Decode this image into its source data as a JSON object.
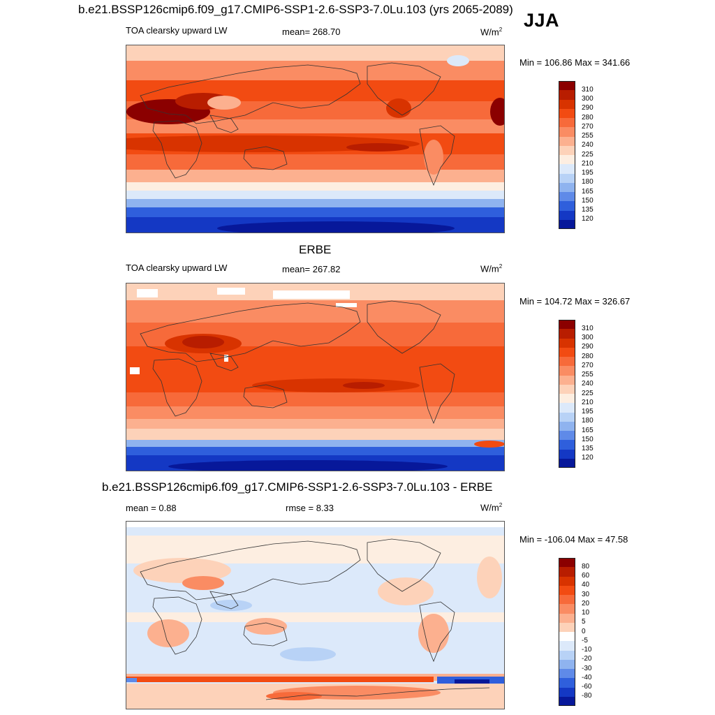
{
  "header": {
    "title": "b.e21.BSSP126cmip6.f09_g17.CMIP6-SSP1-2.6-SSP3-7.0Lu.103 (yrs 2065-2089)",
    "season": "JJA"
  },
  "panels": [
    {
      "id": "model",
      "variable": "TOA clearsky upward LW",
      "mean_label": "mean= 268.70",
      "units": "W/m",
      "units_exp": "2",
      "minmax": "Min = 106.86 Max = 341.66",
      "colorbar_ticks": [
        "310",
        "300",
        "290",
        "280",
        "270",
        "255",
        "240",
        "225",
        "210",
        "195",
        "180",
        "165",
        "150",
        "135",
        "120"
      ]
    },
    {
      "id": "obs",
      "title": "ERBE",
      "variable": "TOA clearsky upward LW",
      "mean_label": "mean= 267.82",
      "units": "W/m",
      "units_exp": "2",
      "minmax": "Min = 104.72 Max = 326.67",
      "colorbar_ticks": [
        "310",
        "300",
        "290",
        "280",
        "270",
        "255",
        "240",
        "225",
        "210",
        "195",
        "180",
        "165",
        "150",
        "135",
        "120"
      ]
    },
    {
      "id": "diff",
      "title": "b.e21.BSSP126cmip6.f09_g17.CMIP6-SSP1-2.6-SSP3-7.0Lu.103 - ERBE",
      "mean_label": "mean =   0.88",
      "rmse_label": "rmse =   8.33",
      "units": "W/m",
      "units_exp": "2",
      "minmax": "Min = -106.04 Max =  47.58",
      "colorbar_ticks": [
        "80",
        "60",
        "40",
        "30",
        "20",
        "10",
        "5",
        "0",
        "-5",
        "-10",
        "-20",
        "-30",
        "-40",
        "-60",
        "-80"
      ]
    }
  ],
  "colorscales": {
    "absolute": [
      "#8b0000",
      "#b81d00",
      "#d83300",
      "#f24b12",
      "#f76a3a",
      "#fa8c63",
      "#fcb08f",
      "#fdd2b9",
      "#fdeee1",
      "#dce9fa",
      "#b8d2f6",
      "#8fb3ef",
      "#5f8ae8",
      "#2f5fdc",
      "#1438c4",
      "#07189a"
    ],
    "difference": [
      "#8b0000",
      "#b81d00",
      "#d83300",
      "#f24b12",
      "#f76a3a",
      "#fa8c63",
      "#fcb08f",
      "#fdd2b9",
      "#ffffff",
      "#dce9fa",
      "#b8d2f6",
      "#8fb3ef",
      "#5f8ae8",
      "#2f5fdc",
      "#1438c4",
      "#07189a"
    ]
  }
}
